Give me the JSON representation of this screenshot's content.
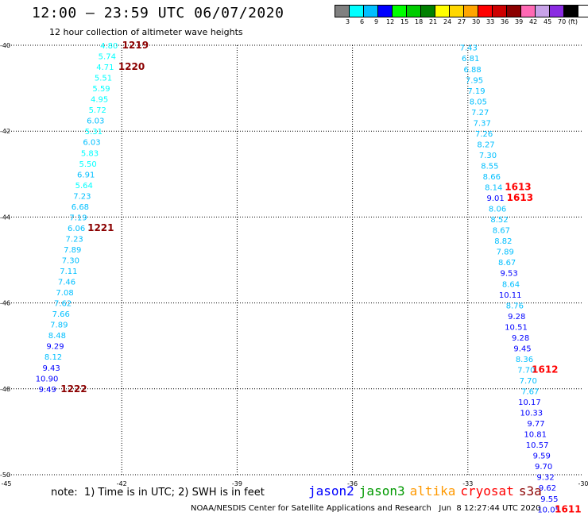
{
  "title": "12:00 – 23:59 UTC 06/07/2020",
  "subtitle": "12 hour collection of altimeter wave heights",
  "legend": {
    "colors": [
      "#808080",
      "#00ffff",
      "#00bfff",
      "#0000ff",
      "#00ff00",
      "#00cd00",
      "#008000",
      "#ffff00",
      "#ffd700",
      "#ffa500",
      "#ff0000",
      "#cd0000",
      "#8b0000",
      "#ff69b4",
      "#c8a2e8",
      "#8a2be2",
      "#000000"
    ],
    "labels": [
      "3",
      "6",
      "9",
      "12",
      "15",
      "18",
      "21",
      "24",
      "27",
      "30",
      "33",
      "36",
      "39",
      "42",
      "45",
      "70",
      "(ft)"
    ]
  },
  "axes": {
    "x_ticks": [
      "-45",
      "-42",
      "-39",
      "-36",
      "-33",
      "-30"
    ],
    "y_ticks": [
      "-40",
      "-42",
      "-44",
      "-46",
      "-48",
      "-50"
    ]
  },
  "chart_data": {
    "type": "scatter",
    "x_range": [
      -45,
      -30
    ],
    "y_range": [
      -50,
      -40
    ],
    "units": "ft",
    "tracks": [
      {
        "points": [
          {
            "lon": -42.1,
            "lat": -40.0,
            "v": "4.80",
            "c": "#00ffff"
          },
          {
            "lon": -42.15,
            "lat": -40.25,
            "v": "5.74",
            "c": "#00ffff"
          },
          {
            "lon": -42.2,
            "lat": -40.5,
            "v": "4.71",
            "c": "#00ffff"
          },
          {
            "lon": -42.25,
            "lat": -40.75,
            "v": "5.51",
            "c": "#00ffff"
          },
          {
            "lon": -42.3,
            "lat": -41.0,
            "v": "5.59",
            "c": "#00ffff"
          },
          {
            "lon": -42.35,
            "lat": -41.25,
            "v": "4.95",
            "c": "#00ffff"
          },
          {
            "lon": -42.4,
            "lat": -41.5,
            "v": "5.72",
            "c": "#00ffff"
          },
          {
            "lon": -42.45,
            "lat": -41.75,
            "v": "6.03",
            "c": "#00bfff"
          },
          {
            "lon": -42.5,
            "lat": -42.0,
            "v": "5.31",
            "c": "#00ffff"
          },
          {
            "lon": -42.55,
            "lat": -42.25,
            "v": "6.03",
            "c": "#00bfff"
          },
          {
            "lon": -42.6,
            "lat": -42.5,
            "v": "5.83",
            "c": "#00ffff"
          },
          {
            "lon": -42.65,
            "lat": -42.75,
            "v": "5.50",
            "c": "#00ffff"
          },
          {
            "lon": -42.7,
            "lat": -43.0,
            "v": "6.91",
            "c": "#00bfff"
          },
          {
            "lon": -42.75,
            "lat": -43.25,
            "v": "5.64",
            "c": "#00ffff"
          },
          {
            "lon": -42.8,
            "lat": -43.5,
            "v": "7.23",
            "c": "#00bfff"
          },
          {
            "lon": -42.85,
            "lat": -43.75,
            "v": "6.68",
            "c": "#00bfff"
          },
          {
            "lon": -42.9,
            "lat": -44.0,
            "v": "7.19",
            "c": "#00bfff"
          },
          {
            "lon": -42.95,
            "lat": -44.25,
            "v": "6.06",
            "c": "#00bfff"
          },
          {
            "lon": -43.0,
            "lat": -44.5,
            "v": "7.23",
            "c": "#00bfff"
          },
          {
            "lon": -43.05,
            "lat": -44.75,
            "v": "7.89",
            "c": "#00bfff"
          },
          {
            "lon": -43.1,
            "lat": -45.0,
            "v": "7.30",
            "c": "#00bfff"
          },
          {
            "lon": -43.15,
            "lat": -45.25,
            "v": "7.11",
            "c": "#00bfff"
          },
          {
            "lon": -43.2,
            "lat": -45.5,
            "v": "7.46",
            "c": "#00bfff"
          },
          {
            "lon": -43.25,
            "lat": -45.75,
            "v": "7.08",
            "c": "#00bfff"
          },
          {
            "lon": -43.3,
            "lat": -46.0,
            "v": "7.62",
            "c": "#00bfff"
          },
          {
            "lon": -43.35,
            "lat": -46.25,
            "v": "7.66",
            "c": "#00bfff"
          },
          {
            "lon": -43.4,
            "lat": -46.5,
            "v": "7.89",
            "c": "#00bfff"
          },
          {
            "lon": -43.45,
            "lat": -46.75,
            "v": "8.48",
            "c": "#00bfff"
          },
          {
            "lon": -43.5,
            "lat": -47.0,
            "v": "9.29",
            "c": "#0000ff"
          },
          {
            "lon": -43.55,
            "lat": -47.25,
            "v": "8.12",
            "c": "#00bfff"
          },
          {
            "lon": -43.6,
            "lat": -47.5,
            "v": "9.43",
            "c": "#0000ff"
          },
          {
            "lon": -43.65,
            "lat": -47.75,
            "v": "10.90",
            "c": "#0000ff"
          },
          {
            "lon": -43.7,
            "lat": -48.0,
            "v": "9.49",
            "c": "#0000ff"
          }
        ],
        "times": [
          {
            "label": "1219",
            "lon": -41.3,
            "lat": -40.0,
            "c": "#8b0000"
          },
          {
            "label": "1220",
            "lon": -41.4,
            "lat": -40.5,
            "c": "#8b0000"
          },
          {
            "label": "1221",
            "lon": -42.2,
            "lat": -44.25,
            "c": "#8b0000"
          },
          {
            "label": "1222",
            "lon": -42.9,
            "lat": -48.0,
            "c": "#8b0000"
          }
        ]
      },
      {
        "points": [
          {
            "lon": -32.75,
            "lat": -40.05,
            "v": "7.43",
            "c": "#00bfff"
          },
          {
            "lon": -32.7,
            "lat": -40.3,
            "v": "6.81",
            "c": "#00bfff"
          },
          {
            "lon": -32.65,
            "lat": -40.55,
            "v": "6.88",
            "c": "#00bfff"
          },
          {
            "lon": -32.6,
            "lat": -40.8,
            "v": "7.95",
            "c": "#00bfff"
          },
          {
            "lon": -32.55,
            "lat": -41.05,
            "v": "7.19",
            "c": "#00bfff"
          },
          {
            "lon": -32.5,
            "lat": -41.3,
            "v": "8.05",
            "c": "#00bfff"
          },
          {
            "lon": -32.45,
            "lat": -41.55,
            "v": "7.27",
            "c": "#00bfff"
          },
          {
            "lon": -32.4,
            "lat": -41.8,
            "v": "7.37",
            "c": "#00bfff"
          },
          {
            "lon": -32.35,
            "lat": -42.05,
            "v": "7.26",
            "c": "#00bfff"
          },
          {
            "lon": -32.3,
            "lat": -42.3,
            "v": "8.27",
            "c": "#00bfff"
          },
          {
            "lon": -32.25,
            "lat": -42.55,
            "v": "7.30",
            "c": "#00bfff"
          },
          {
            "lon": -32.2,
            "lat": -42.8,
            "v": "8.55",
            "c": "#00bfff"
          },
          {
            "lon": -32.15,
            "lat": -43.05,
            "v": "8.66",
            "c": "#00bfff"
          },
          {
            "lon": -32.1,
            "lat": -43.3,
            "v": "8.14",
            "c": "#00bfff"
          },
          {
            "lon": -32.05,
            "lat": -43.55,
            "v": "9.01",
            "c": "#0000ff"
          },
          {
            "lon": -32.0,
            "lat": -43.8,
            "v": "8.06",
            "c": "#00bfff"
          },
          {
            "lon": -31.95,
            "lat": -44.05,
            "v": "8.52",
            "c": "#00bfff"
          },
          {
            "lon": -31.9,
            "lat": -44.3,
            "v": "8.67",
            "c": "#00bfff"
          },
          {
            "lon": -31.85,
            "lat": -44.55,
            "v": "8.82",
            "c": "#00bfff"
          },
          {
            "lon": -31.8,
            "lat": -44.8,
            "v": "7.89",
            "c": "#00bfff"
          },
          {
            "lon": -31.75,
            "lat": -45.05,
            "v": "8.67",
            "c": "#00bfff"
          },
          {
            "lon": -31.7,
            "lat": -45.3,
            "v": "9.53",
            "c": "#0000ff"
          },
          {
            "lon": -31.65,
            "lat": -45.55,
            "v": "8.64",
            "c": "#00bfff"
          },
          {
            "lon": -31.6,
            "lat": -45.8,
            "v": "10.11",
            "c": "#0000ff"
          },
          {
            "lon": -31.55,
            "lat": -46.05,
            "v": "8.76",
            "c": "#00bfff"
          },
          {
            "lon": -31.5,
            "lat": -46.3,
            "v": "9.28",
            "c": "#0000ff"
          },
          {
            "lon": -31.45,
            "lat": -46.55,
            "v": "10.51",
            "c": "#0000ff"
          },
          {
            "lon": -31.4,
            "lat": -46.8,
            "v": "9.28",
            "c": "#0000ff"
          },
          {
            "lon": -31.35,
            "lat": -47.05,
            "v": "9.45",
            "c": "#0000ff"
          },
          {
            "lon": -31.3,
            "lat": -47.3,
            "v": "8.36",
            "c": "#00bfff"
          },
          {
            "lon": -31.25,
            "lat": -47.55,
            "v": "7.70",
            "c": "#00bfff"
          },
          {
            "lon": -31.2,
            "lat": -47.8,
            "v": "7.70",
            "c": "#00bfff"
          },
          {
            "lon": -31.15,
            "lat": -48.05,
            "v": "7.67",
            "c": "#00bfff"
          },
          {
            "lon": -31.1,
            "lat": -48.3,
            "v": "10.17",
            "c": "#0000ff"
          },
          {
            "lon": -31.05,
            "lat": -48.55,
            "v": "10.33",
            "c": "#0000ff"
          },
          {
            "lon": -31.0,
            "lat": -48.8,
            "v": "9.77",
            "c": "#0000ff"
          },
          {
            "lon": -30.95,
            "lat": -49.05,
            "v": "10.81",
            "c": "#0000ff"
          },
          {
            "lon": -30.9,
            "lat": -49.3,
            "v": "10.57",
            "c": "#0000ff"
          },
          {
            "lon": -30.85,
            "lat": -49.55,
            "v": "9.59",
            "c": "#0000ff"
          },
          {
            "lon": -30.8,
            "lat": -49.8,
            "v": "9.70",
            "c": "#0000ff"
          },
          {
            "lon": -30.75,
            "lat": -50.05,
            "v": "9.32",
            "c": "#0000ff"
          },
          {
            "lon": -30.7,
            "lat": -50.3,
            "v": "9.62",
            "c": "#0000ff"
          },
          {
            "lon": -30.65,
            "lat": -50.55,
            "v": "9.55",
            "c": "#0000ff"
          },
          {
            "lon": -30.6,
            "lat": -50.8,
            "v": "10.05",
            "c": "#0000ff"
          }
        ],
        "times": [
          {
            "label": "1613",
            "lon": -31.35,
            "lat": -43.3,
            "c": "#ff0000"
          },
          {
            "label": "1613",
            "lon": -31.3,
            "lat": -43.55,
            "c": "#ff0000"
          },
          {
            "label": "1612",
            "lon": -30.65,
            "lat": -47.55,
            "c": "#ff0000"
          },
          {
            "label": "1611",
            "lon": -30.05,
            "lat": -50.8,
            "c": "#ff0000"
          }
        ]
      }
    ]
  },
  "note": "note:  1) Time is in UTC; 2) SWH is in feet",
  "satellites": [
    {
      "name": "jason2",
      "color": "#0000ff"
    },
    {
      "name": "jason3",
      "color": "#009900"
    },
    {
      "name": "altika",
      "color": "#ff9900"
    },
    {
      "name": "cryosat",
      "color": "#ff0000"
    },
    {
      "name": "s3a",
      "color": "#8b0000"
    }
  ],
  "footer": "NOAA/NESDIS Center for Satellite Applications and Research   Jun  8 12:27:44 UTC 2020"
}
